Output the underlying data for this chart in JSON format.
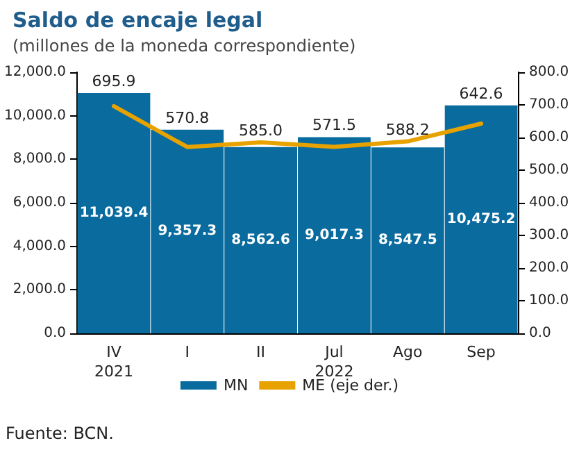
{
  "chart_data": {
    "type": "bar",
    "title": "Saldo de encaje legal",
    "subtitle": "(millones de la moneda correspondiente)",
    "categories": [
      "IV",
      "I",
      "II",
      "Jul",
      "Ago",
      "Sep"
    ],
    "series": [
      {
        "name": "MN",
        "color": "#0a6b9e",
        "values": [
          11039.4,
          9357.3,
          8562.6,
          9017.3,
          8547.5,
          10475.2
        ],
        "value_labels": [
          "11,039.4",
          "9,357.3",
          "8,562.6",
          "9,017.3",
          "8,547.5",
          "10,475.2"
        ]
      },
      {
        "name": "ME (eje der.)",
        "type": "line",
        "axis": "y2",
        "color": "#e8a200",
        "values": [
          695.9,
          570.8,
          585.0,
          571.5,
          588.2,
          642.6
        ],
        "value_labels": [
          "695.9",
          "570.8",
          "585.0",
          "571.5",
          "588.2",
          "642.6"
        ]
      }
    ],
    "ylim": [
      0,
      12000
    ],
    "yticks": [
      {
        "value": 0,
        "label": "0.0"
      },
      {
        "value": 2000,
        "label": "2,000.0"
      },
      {
        "value": 4000,
        "label": "4,000.0"
      },
      {
        "value": 6000,
        "label": "6,000.0"
      },
      {
        "value": 8000,
        "label": "8,000.0"
      },
      {
        "value": 10000,
        "label": "10,000.0"
      },
      {
        "value": 12000,
        "label": "12,000.0"
      }
    ],
    "y2lim": [
      0,
      800
    ],
    "y2ticks": [
      {
        "value": 0,
        "label": "0.0"
      },
      {
        "value": 100,
        "label": "100.0"
      },
      {
        "value": 200,
        "label": "200.0"
      },
      {
        "value": 300,
        "label": "300.0"
      },
      {
        "value": 400,
        "label": "400.0"
      },
      {
        "value": 500,
        "label": "500.0"
      },
      {
        "value": 600,
        "label": "600.0"
      },
      {
        "value": 700,
        "label": "700.0"
      },
      {
        "value": 800,
        "label": "800.0"
      }
    ],
    "grid": false,
    "legend": "bottom",
    "marker": "none",
    "line_style": "solid",
    "annotations": [
      "2021",
      "2022",
      "Fuente: BCN."
    ]
  }
}
